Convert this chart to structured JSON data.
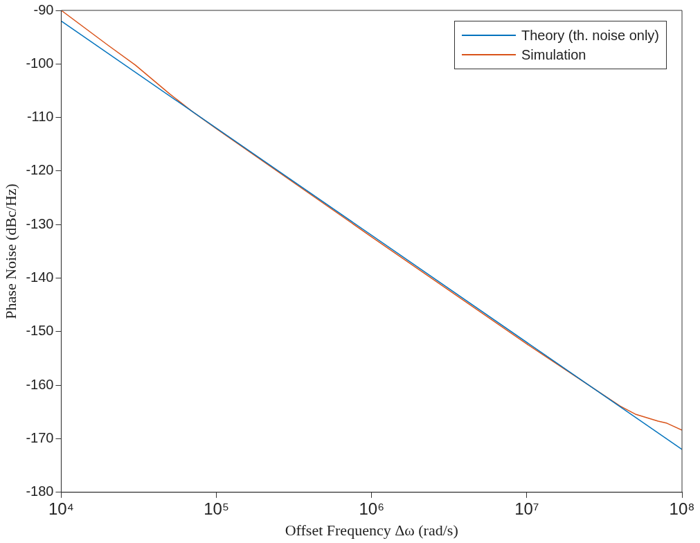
{
  "chart_data": {
    "type": "line",
    "xlabel": "Offset Frequency Δω (rad/s)",
    "ylabel": "Phase Noise (dBc/Hz)",
    "log": "x",
    "xlim": [
      10000,
      100000000
    ],
    "xticks": [
      {
        "value": 10000,
        "label": "10⁴"
      },
      {
        "value": 100000,
        "label": "10⁵"
      },
      {
        "value": 1000000,
        "label": "10⁶"
      },
      {
        "value": 10000000,
        "label": "10⁷"
      },
      {
        "value": 100000000,
        "label": "10⁸"
      }
    ],
    "ylim": [
      -180,
      -90
    ],
    "yticks": [
      -180,
      -170,
      -160,
      -150,
      -140,
      -130,
      -120,
      -110,
      -100,
      -90
    ],
    "grid": false,
    "legend": "top right",
    "marker": "none",
    "line_style": "solid",
    "series": [
      {
        "name": "Theory (th. noise only)",
        "color": "#0072bd",
        "x": [
          10000,
          100000000
        ],
        "values": [
          -92,
          -172
        ]
      },
      {
        "name": "Simulation",
        "color": "#d95319",
        "x": [
          10000,
          20000,
          30000,
          50000,
          70000,
          100000,
          1000000,
          10000000,
          40000000,
          50000000,
          70000000,
          80000000,
          100000000
        ],
        "values": [
          -90,
          -96.5,
          -100.2,
          -105.6,
          -108.9,
          -112.1,
          -132.3,
          -152.3,
          -163.9,
          -165.4,
          -166.7,
          -167.1,
          -168.4
        ]
      }
    ]
  }
}
